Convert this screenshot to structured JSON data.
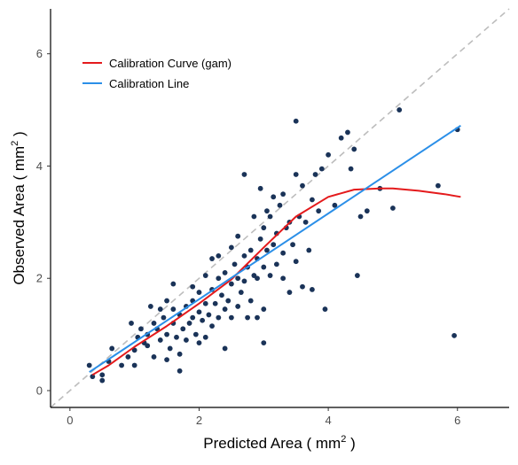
{
  "chart_data": {
    "type": "scatter",
    "xlabel": "Predicted Area ( mm",
    "ylabel": "Observed Area ( mm",
    "label_exponent": "2",
    "label_suffix": " )",
    "xlim": [
      -0.3,
      6.8
    ],
    "ylim": [
      -0.3,
      6.8
    ],
    "x_ticks": [
      0,
      2,
      4,
      6
    ],
    "y_ticks": [
      0,
      2,
      4,
      6
    ],
    "x_tick_labels": [
      "0",
      "2",
      "4",
      "6"
    ],
    "y_tick_labels": [
      "0",
      "2",
      "4",
      "6"
    ],
    "grid": false,
    "legend_position": "top-left",
    "reference_line": {
      "style": "dashed",
      "color": "#bdbdbd",
      "from": [
        -0.3,
        -0.3
      ],
      "to": [
        6.8,
        6.8
      ]
    },
    "points_color": "#1a3358",
    "series": [
      {
        "name": "Calibration Curve (gam)",
        "color": "#e41a1c",
        "points": [
          [
            0.35,
            0.28
          ],
          [
            0.6,
            0.45
          ],
          [
            1.0,
            0.78
          ],
          [
            1.5,
            1.15
          ],
          [
            2.0,
            1.55
          ],
          [
            2.5,
            1.98
          ],
          [
            3.0,
            2.55
          ],
          [
            3.5,
            3.1
          ],
          [
            4.0,
            3.45
          ],
          [
            4.4,
            3.58
          ],
          [
            4.8,
            3.6
          ],
          [
            5.0,
            3.6
          ],
          [
            5.4,
            3.56
          ],
          [
            5.8,
            3.5
          ],
          [
            6.05,
            3.45
          ]
        ]
      },
      {
        "name": "Calibration Line",
        "color": "#2b8fe8",
        "points": [
          [
            0.3,
            0.33
          ],
          [
            6.05,
            4.72
          ]
        ]
      }
    ],
    "scatter_points": [
      [
        0.3,
        0.45
      ],
      [
        0.35,
        0.25
      ],
      [
        0.5,
        0.28
      ],
      [
        0.5,
        0.18
      ],
      [
        0.65,
        0.75
      ],
      [
        0.6,
        0.52
      ],
      [
        0.8,
        0.45
      ],
      [
        0.9,
        0.6
      ],
      [
        0.95,
        1.2
      ],
      [
        1.0,
        0.72
      ],
      [
        1.05,
        0.95
      ],
      [
        1.1,
        1.1
      ],
      [
        1.0,
        0.45
      ],
      [
        1.15,
        0.85
      ],
      [
        1.2,
        1.0
      ],
      [
        1.25,
        1.5
      ],
      [
        1.3,
        1.2
      ],
      [
        1.3,
        0.6
      ],
      [
        1.35,
        1.1
      ],
      [
        1.4,
        0.9
      ],
      [
        1.45,
        1.3
      ],
      [
        1.5,
        1.0
      ],
      [
        1.5,
        1.6
      ],
      [
        1.55,
        0.75
      ],
      [
        1.6,
        1.2
      ],
      [
        1.6,
        1.45
      ],
      [
        1.65,
        0.95
      ],
      [
        1.7,
        1.35
      ],
      [
        1.7,
        0.65
      ],
      [
        1.75,
        1.1
      ],
      [
        1.8,
        1.5
      ],
      [
        1.8,
        0.9
      ],
      [
        1.85,
        1.2
      ],
      [
        1.9,
        1.6
      ],
      [
        1.9,
        1.3
      ],
      [
        1.95,
        1.0
      ],
      [
        2.0,
        1.4
      ],
      [
        2.0,
        1.75
      ],
      [
        2.05,
        1.25
      ],
      [
        2.1,
        1.55
      ],
      [
        2.1,
        0.95
      ],
      [
        2.15,
        1.35
      ],
      [
        2.2,
        1.8
      ],
      [
        2.2,
        1.15
      ],
      [
        2.25,
        1.55
      ],
      [
        2.3,
        2.0
      ],
      [
        2.3,
        1.3
      ],
      [
        2.35,
        1.7
      ],
      [
        2.4,
        1.45
      ],
      [
        2.4,
        2.1
      ],
      [
        2.45,
        1.6
      ],
      [
        2.5,
        1.3
      ],
      [
        2.5,
        1.9
      ],
      [
        2.55,
        2.25
      ],
      [
        2.6,
        1.5
      ],
      [
        2.6,
        2.0
      ],
      [
        2.65,
        1.75
      ],
      [
        2.7,
        2.4
      ],
      [
        2.7,
        1.95
      ],
      [
        2.75,
        2.2
      ],
      [
        2.8,
        1.6
      ],
      [
        2.8,
        2.5
      ],
      [
        2.85,
        2.05
      ],
      [
        2.9,
        2.35
      ],
      [
        2.9,
        1.3
      ],
      [
        2.95,
        2.7
      ],
      [
        3.0,
        2.2
      ],
      [
        3.0,
        2.9
      ],
      [
        3.05,
        2.5
      ],
      [
        3.1,
        2.05
      ],
      [
        3.1,
        3.1
      ],
      [
        3.15,
        2.6
      ],
      [
        3.2,
        2.8
      ],
      [
        3.2,
        2.25
      ],
      [
        3.25,
        3.3
      ],
      [
        3.3,
        2.45
      ],
      [
        3.35,
        2.9
      ],
      [
        3.4,
        3.0
      ],
      [
        3.45,
        2.6
      ],
      [
        3.5,
        3.85
      ],
      [
        3.5,
        2.3
      ],
      [
        3.55,
        3.1
      ],
      [
        3.6,
        3.65
      ],
      [
        3.65,
        3.0
      ],
      [
        3.7,
        2.5
      ],
      [
        3.75,
        3.4
      ],
      [
        3.8,
        3.85
      ],
      [
        3.85,
        3.2
      ],
      [
        3.9,
        3.95
      ],
      [
        4.0,
        4.2
      ],
      [
        4.1,
        3.3
      ],
      [
        4.2,
        4.5
      ],
      [
        4.3,
        4.6
      ],
      [
        4.4,
        4.3
      ],
      [
        4.35,
        3.95
      ],
      [
        4.45,
        2.05
      ],
      [
        4.5,
        3.1
      ],
      [
        4.6,
        3.2
      ],
      [
        4.8,
        3.6
      ],
      [
        5.0,
        3.25
      ],
      [
        5.1,
        5.0
      ],
      [
        5.95,
        0.98
      ],
      [
        6.0,
        4.65
      ],
      [
        5.7,
        3.65
      ],
      [
        3.5,
        4.8
      ],
      [
        3.3,
        2.0
      ],
      [
        3.0,
        1.45
      ],
      [
        2.75,
        1.3
      ],
      [
        1.7,
        0.35
      ],
      [
        3.95,
        1.45
      ],
      [
        3.75,
        1.8
      ],
      [
        3.6,
        1.85
      ],
      [
        3.4,
        1.75
      ],
      [
        2.9,
        2.0
      ],
      [
        2.5,
        2.55
      ],
      [
        2.3,
        2.4
      ],
      [
        2.1,
        2.05
      ],
      [
        1.9,
        1.85
      ],
      [
        1.6,
        1.9
      ],
      [
        1.4,
        1.45
      ],
      [
        2.2,
        2.35
      ],
      [
        2.6,
        2.75
      ],
      [
        2.85,
        3.1
      ],
      [
        3.05,
        3.2
      ],
      [
        3.3,
        3.5
      ],
      [
        2.7,
        3.85
      ],
      [
        2.95,
        3.6
      ],
      [
        3.15,
        3.45
      ],
      [
        1.2,
        0.8
      ],
      [
        1.5,
        0.55
      ],
      [
        2.0,
        0.85
      ],
      [
        2.4,
        0.75
      ],
      [
        3.0,
        0.85
      ]
    ]
  }
}
